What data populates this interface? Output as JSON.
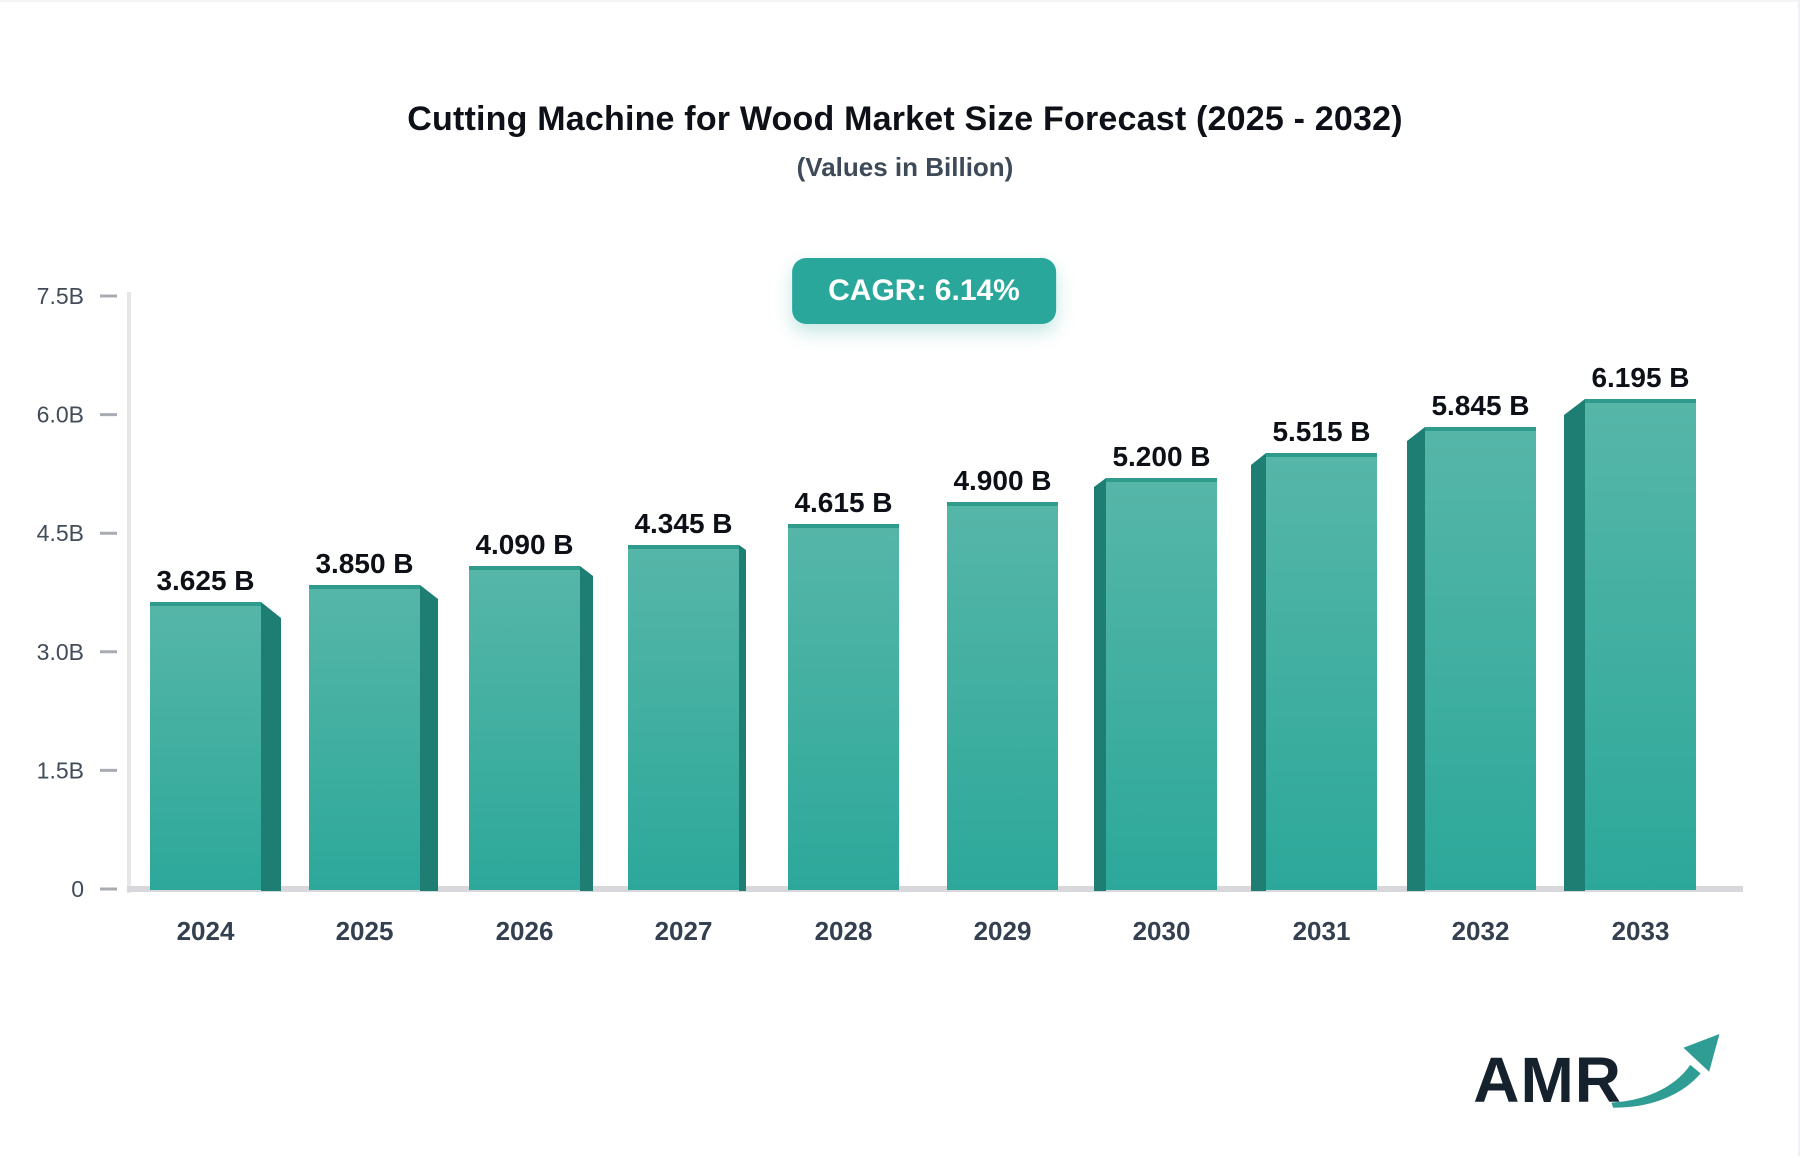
{
  "title": "Cutting Machine for Wood Market Size Forecast (2025 - 2032)",
  "subtitle": "(Values in Billion)",
  "cagr": {
    "label": "CAGR: 6.14%"
  },
  "logo": {
    "text": "AMR",
    "icon": "growth-arrow-icon"
  },
  "colors": {
    "badge_bg": "#2aa79b",
    "bar_gradient_top": "#56b6a8",
    "bar_gradient_bottom": "#2ca89a",
    "bar_top_edge": "#2f9b8d",
    "bar_side_face": "#1e7e74",
    "axis_line": "#e6e6e9",
    "baseline": "#d8d8dc",
    "tick_dash": "#a8acb2",
    "y_label_text": "#424c58",
    "x_label_text": "#344050",
    "value_label_text": "#0d1117",
    "logo_text": "#15212c",
    "logo_arrow": "#2f9d93"
  },
  "chart_data": {
    "type": "bar",
    "title": "Cutting Machine for Wood Market Size Forecast (2025 - 2032)",
    "subtitle": "(Values in Billion)",
    "categories": [
      "2024",
      "2025",
      "2026",
      "2027",
      "2028",
      "2029",
      "2030",
      "2031",
      "2032",
      "2033"
    ],
    "values": [
      3.625,
      3.85,
      4.09,
      4.345,
      4.615,
      4.9,
      5.2,
      5.515,
      5.845,
      6.195
    ],
    "value_labels": [
      "3.625 B",
      "3.850 B",
      "4.090 B",
      "4.345 B",
      "4.615 B",
      "4.900 B",
      "5.200 B",
      "5.515 B",
      "5.845 B",
      "6.195 B"
    ],
    "unit": "Billion",
    "xlabel": "",
    "ylabel": "",
    "ylim": [
      0,
      7.5
    ],
    "y_ticks": [
      {
        "label": "0",
        "value": 0
      },
      {
        "label": "1.5B",
        "value": 1.5
      },
      {
        "label": "3.0B",
        "value": 3.0
      },
      {
        "label": "4.5B",
        "value": 4.5
      },
      {
        "label": "6.0B",
        "value": 6.0
      },
      {
        "label": "7.5B",
        "value": 7.5
      }
    ],
    "grid": false,
    "legend": "none",
    "annotation": "CAGR: 6.14%",
    "style": "3d-perspective-bars, teal gradient, center viewpoint"
  }
}
